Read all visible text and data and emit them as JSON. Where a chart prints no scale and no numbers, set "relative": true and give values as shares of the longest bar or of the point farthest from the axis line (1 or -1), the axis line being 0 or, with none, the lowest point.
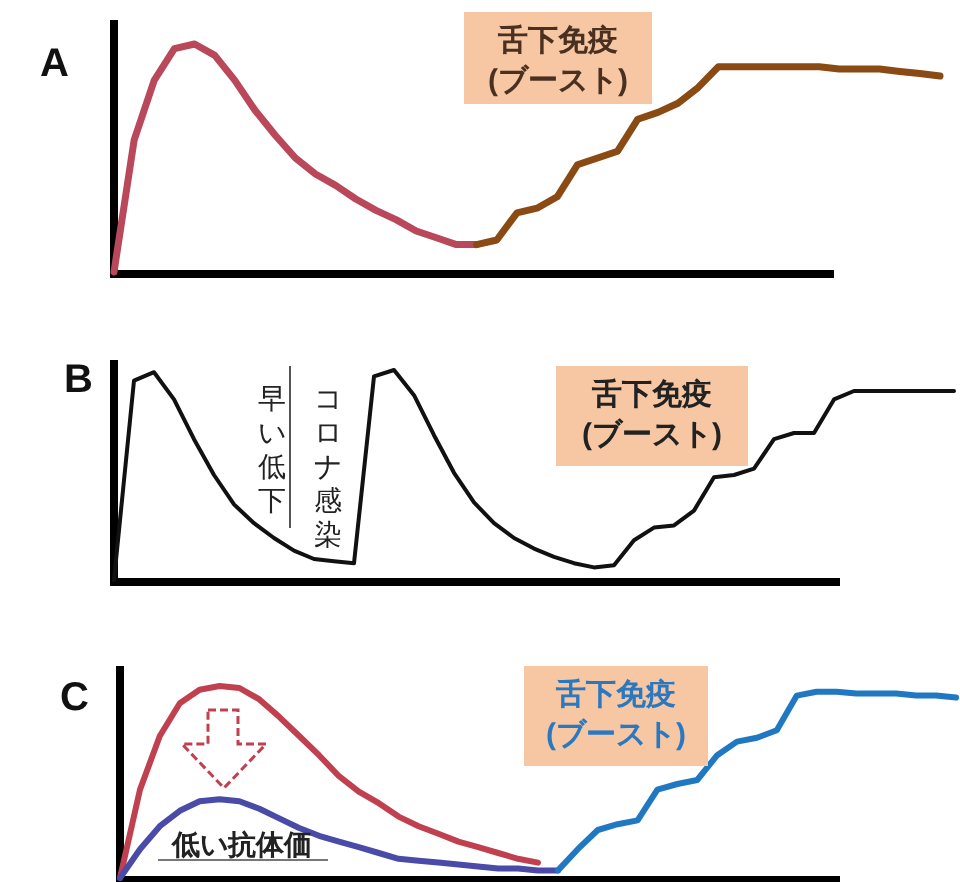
{
  "chart_data": [
    {
      "type": "line",
      "title": "A",
      "relative": true,
      "categories": [
        null,
        null,
        null,
        null,
        null,
        null,
        null,
        null,
        null,
        null,
        null,
        null,
        null,
        null,
        null,
        null,
        null,
        null,
        null,
        null,
        null,
        null,
        null,
        null,
        null,
        null,
        null,
        null,
        null,
        null,
        null,
        null,
        null,
        null,
        null,
        null,
        null,
        null,
        null,
        null,
        null,
        null
      ],
      "series": [
        {
          "color": "#b8485a",
          "values": [
            0,
            0.58,
            0.84,
            0.98,
            1,
            0.95,
            0.84,
            0.71,
            0.6,
            0.5,
            0.43,
            0.38,
            0.32,
            0.27,
            0.23,
            0.18,
            0.15,
            0.12,
            0.12,
            null,
            null,
            null,
            null,
            null,
            null,
            null,
            null,
            null,
            null,
            null,
            null,
            null,
            null,
            null,
            null,
            null,
            null,
            null,
            null,
            null,
            null,
            null
          ]
        },
        {
          "color": "#8a4a14",
          "values": [
            null,
            null,
            null,
            null,
            null,
            null,
            null,
            null,
            null,
            null,
            null,
            null,
            null,
            null,
            null,
            null,
            null,
            null,
            0.12,
            0.14,
            0.26,
            0.28,
            0.33,
            0.47,
            0.5,
            0.53,
            0.67,
            0.7,
            0.74,
            0.81,
            0.9,
            0.9,
            0.9,
            0.9,
            0.9,
            0.9,
            0.89,
            0.89,
            0.89,
            0.88,
            0.87,
            0.86
          ]
        }
      ],
      "annotations": [
        "舌下免疫\n(ブースト)"
      ]
    },
    {
      "type": "line",
      "title": "B",
      "relative": true,
      "categories": [
        null,
        null,
        null,
        null,
        null,
        null,
        null,
        null,
        null,
        null,
        null,
        null,
        null,
        null,
        null,
        null,
        null,
        null,
        null,
        null,
        null,
        null,
        null,
        null,
        null,
        null,
        null,
        null,
        null,
        null,
        null,
        null,
        null,
        null,
        null,
        null,
        null,
        null,
        null,
        null,
        null,
        null,
        null
      ],
      "series": [
        {
          "color": "#111111",
          "values": [
            0,
            0.95,
            0.99,
            0.86,
            0.67,
            0.5,
            0.36,
            0.27,
            0.2,
            0.14,
            0.1,
            0.09,
            0.08,
            0.97,
            1,
            0.88,
            0.69,
            0.51,
            0.37,
            0.27,
            0.2,
            0.15,
            0.11,
            0.08,
            0.06,
            0.07,
            0.19,
            0.25,
            0.26,
            0.33,
            0.49,
            0.5,
            0.53,
            0.67,
            0.7,
            0.7,
            0.86,
            0.9,
            0.9,
            0.9,
            0.9,
            0.9,
            0.9
          ]
        }
      ],
      "annotations": [
        "早い低下",
        "コロナ感染",
        "舌下免疫\n(ブースト)"
      ]
    },
    {
      "type": "line",
      "title": "C",
      "relative": true,
      "categories": [
        null,
        null,
        null,
        null,
        null,
        null,
        null,
        null,
        null,
        null,
        null,
        null,
        null,
        null,
        null,
        null,
        null,
        null,
        null,
        null,
        null,
        null,
        null,
        null,
        null,
        null,
        null,
        null,
        null,
        null,
        null,
        null,
        null,
        null,
        null,
        null,
        null,
        null,
        null,
        null,
        null,
        null,
        null
      ],
      "series": [
        {
          "color": "#c0404f",
          "values": [
            0,
            0.46,
            0.74,
            0.91,
            0.98,
            1,
            0.99,
            0.93,
            0.84,
            0.74,
            0.64,
            0.53,
            0.45,
            0.39,
            0.32,
            0.27,
            0.23,
            0.19,
            0.16,
            0.13,
            0.1,
            0.08,
            null,
            null,
            null,
            null,
            null,
            null,
            null,
            null,
            null,
            null,
            null,
            null,
            null,
            null,
            null,
            null,
            null,
            null,
            null,
            null,
            null
          ]
        },
        {
          "color": "#4a4aa8",
          "values": [
            0,
            0.15,
            0.27,
            0.35,
            0.4,
            0.41,
            0.4,
            0.36,
            0.31,
            0.26,
            0.22,
            0.19,
            0.16,
            0.13,
            0.1,
            0.09,
            0.08,
            0.07,
            0.06,
            0.05,
            0.05,
            0.04,
            0.04,
            null,
            null,
            null,
            null,
            null,
            null,
            null,
            null,
            null,
            null,
            null,
            null,
            null,
            null,
            null,
            null,
            null,
            null,
            null,
            null
          ]
        },
        {
          "color": "#1f78c1",
          "values": [
            null,
            null,
            null,
            null,
            null,
            null,
            null,
            null,
            null,
            null,
            null,
            null,
            null,
            null,
            null,
            null,
            null,
            null,
            null,
            null,
            null,
            null,
            0.04,
            0.15,
            0.25,
            0.28,
            0.3,
            0.46,
            0.49,
            0.51,
            0.64,
            0.71,
            0.73,
            0.77,
            0.95,
            0.97,
            0.97,
            0.96,
            0.96,
            0.96,
            0.95,
            0.95,
            0.94
          ]
        }
      ],
      "annotations": [
        "舌下免疫\n(ブースト)",
        "低い抗体価"
      ]
    }
  ]
}
